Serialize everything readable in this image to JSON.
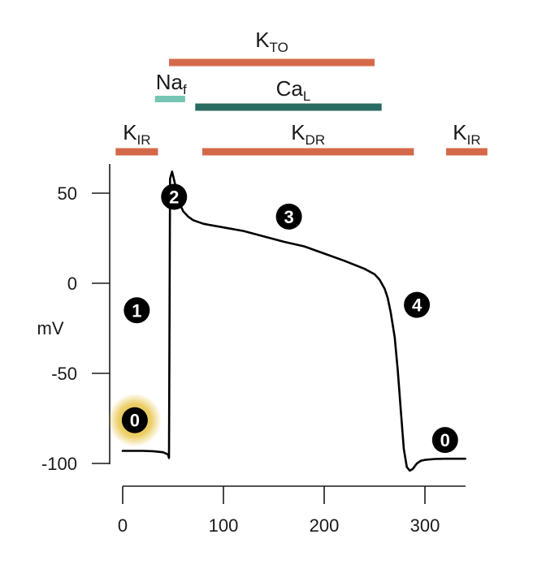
{
  "chart_data": {
    "type": "line",
    "title": "",
    "xlabel": "",
    "ylabel": "mV",
    "xlim": [
      0,
      345
    ],
    "ylim": [
      -100,
      65
    ],
    "x_ticks": [
      0,
      100,
      200,
      300
    ],
    "y_ticks": [
      50,
      0,
      -50,
      -100
    ],
    "grid": false,
    "series": [
      {
        "x": [
          0,
          10,
          20,
          30,
          40,
          45,
          46,
          47,
          49,
          52,
          56,
          60,
          65,
          70,
          80,
          100,
          120,
          140,
          160,
          180,
          200,
          220,
          240,
          250,
          255,
          260,
          263,
          266,
          270,
          273,
          276,
          279,
          282,
          285,
          288,
          292,
          296,
          300,
          310,
          320,
          340
        ],
        "y": [
          -93,
          -93,
          -93,
          -93.2,
          -93.8,
          -95,
          -97,
          58,
          62,
          55,
          45,
          40,
          37,
          35,
          33,
          31,
          29,
          26,
          23,
          20.5,
          16.5,
          12.5,
          8,
          5,
          2,
          -3,
          -8,
          -16,
          -30,
          -48,
          -70,
          -92,
          -102,
          -104,
          -103,
          -100,
          -98.5,
          -98,
          -97.5,
          -97.4,
          -97.4
        ]
      }
    ],
    "phases": [
      {
        "label": "0",
        "x": 12,
        "y": -76
      },
      {
        "label": "1",
        "x": 14,
        "y": -15
      },
      {
        "label": "2",
        "x": 51,
        "y": 48
      },
      {
        "label": "3",
        "x": 165,
        "y": 37
      },
      {
        "label": "4",
        "x": 292,
        "y": -12
      },
      {
        "label": "0",
        "x": 320,
        "y": -87
      }
    ],
    "channels": [
      {
        "main": "K",
        "sub": "TO",
        "color": "#d4694a",
        "x_start": 46,
        "x_end": 250,
        "row": 1
      },
      {
        "main": "Na",
        "sub": "f",
        "color": "#76c5b4",
        "x_start": 32,
        "x_end": 62,
        "row": 2
      },
      {
        "main": "Ca",
        "sub": "L",
        "color": "#2b6b62",
        "x_start": 72,
        "x_end": 257,
        "row": 3
      },
      {
        "main": "K",
        "sub": "IR",
        "color": "#d4694a",
        "x_start": -7,
        "x_end": 35,
        "row": 4
      },
      {
        "main": "K",
        "sub": "DR",
        "color": "#d4694a",
        "x_start": 79,
        "x_end": 289,
        "row": 4
      },
      {
        "main": "K",
        "sub": "IR",
        "color": "#d4694a",
        "x_start": 321,
        "x_end": 362,
        "row": 4
      }
    ],
    "highlight": {
      "label": "0",
      "color": "#e8c54a"
    }
  }
}
